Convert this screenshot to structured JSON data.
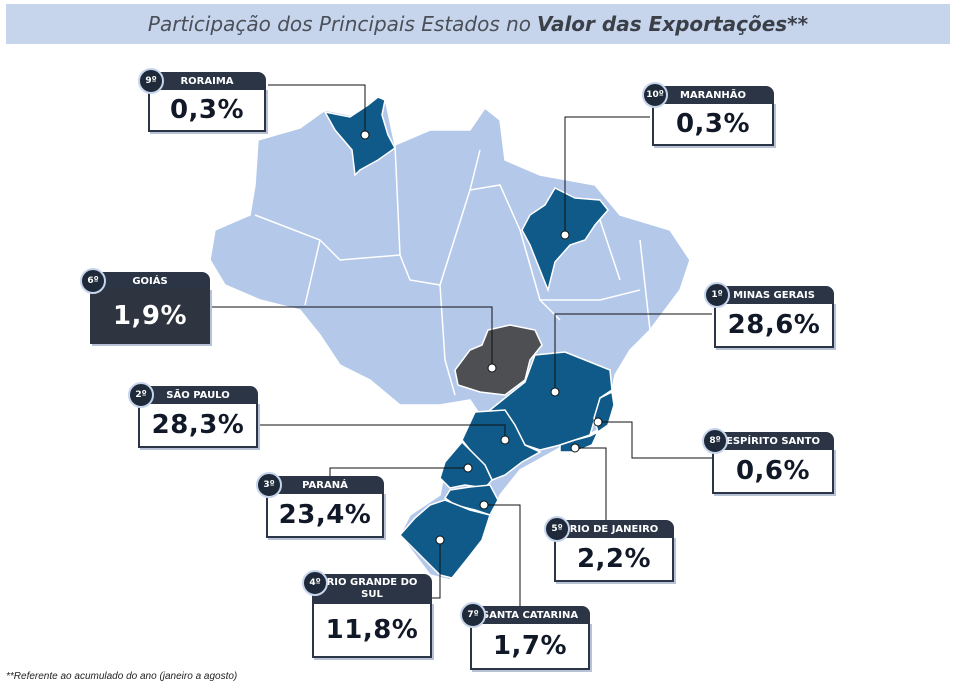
{
  "title": {
    "prefix": "Participação dos Principais Estados no ",
    "bold": "Valor das Exportações",
    "suffix": "**"
  },
  "footnote": "**Referente ao acumulado do ano (janeiro a agosto)",
  "colors": {
    "highlight": "#0f5a88",
    "goias": "#4d4f52",
    "base": "#b4c8ea",
    "border": "#ffffff",
    "title_bg": "#c6d4ec"
  },
  "states": [
    {
      "id": "roraima",
      "rank": "9º",
      "name": "RORAIMA",
      "value": "0,3%"
    },
    {
      "id": "maranhao",
      "rank": "10º",
      "name": "MARANHÃO",
      "value": "0,3%"
    },
    {
      "id": "goias",
      "rank": "6º",
      "name": "GOIÁS",
      "value": "1,9%"
    },
    {
      "id": "minas",
      "rank": "1º",
      "name": "MINAS GERAIS",
      "value": "28,6%"
    },
    {
      "id": "saopaulo",
      "rank": "2º",
      "name": "SÃO PAULO",
      "value": "28,3%"
    },
    {
      "id": "espirito",
      "rank": "8º",
      "name": "ESPÍRITO SANTO",
      "value": "0,6%"
    },
    {
      "id": "parana",
      "rank": "3º",
      "name": "PARANÁ",
      "value": "23,4%"
    },
    {
      "id": "riodejaneiro",
      "rank": "5º",
      "name": "RIO DE JANEIRO",
      "value": "2,2%"
    },
    {
      "id": "rgs",
      "rank": "4º",
      "name": "RIO GRANDE DO SUL",
      "value": "11,8%"
    },
    {
      "id": "santacatarina",
      "rank": "7º",
      "name": "SANTA CATARINA",
      "value": "1,7%"
    }
  ]
}
